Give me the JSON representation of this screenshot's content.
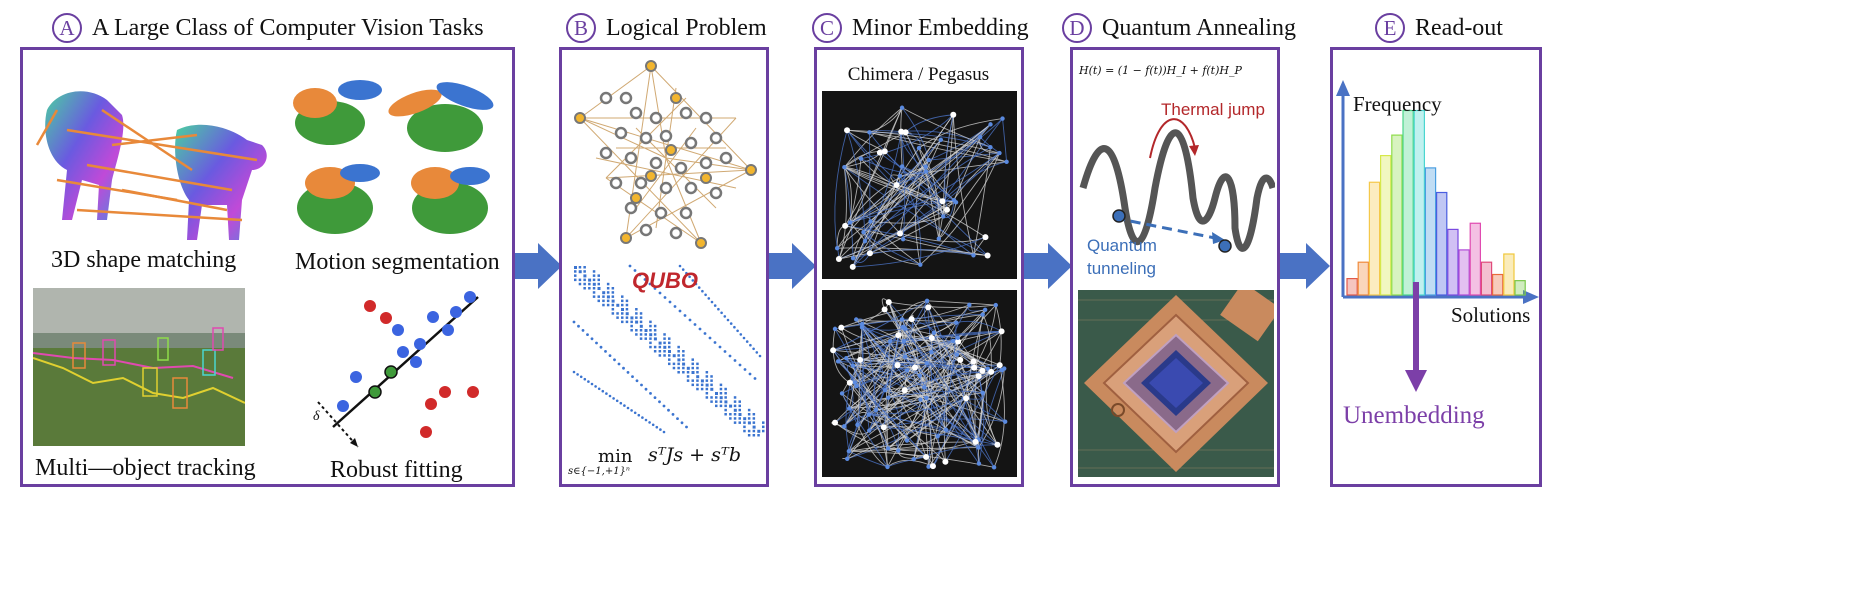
{
  "colors": {
    "accent": "#6a3fa0",
    "arrow": "#4a72c4",
    "orange": "#e8893a",
    "green": "#3f9a3a",
    "blue": "#3b74d0",
    "red": "#d12a2a",
    "qubo": "#c0272d",
    "thermal": "#b3272a",
    "quantum": "#3c6fb8",
    "unembed": "#7c3fa8"
  },
  "sections": [
    {
      "letter": "A",
      "title": "A Large Class of Computer Vision Tasks"
    },
    {
      "letter": "B",
      "title": "Logical Problem"
    },
    {
      "letter": "C",
      "title": "Minor Embedding"
    },
    {
      "letter": "D",
      "title": "Quantum Annealing"
    },
    {
      "letter": "E",
      "title": "Read-out"
    }
  ],
  "panelA": {
    "shape": "3D shape matching",
    "motion": "Motion segmentation",
    "tracking": "Multi—object tracking",
    "robust": "Robust fitting",
    "delta": "δ"
  },
  "panelB": {
    "qubo": "QUBO",
    "min": "min",
    "sub": "s∈{−1,+1}ⁿ",
    "expr": "sᵀJs + sᵀb"
  },
  "panelC": {
    "label": "Chimera / Pegasus"
  },
  "panelD": {
    "hamiltonian": "H(t) = (1 − f(t))H_I + f(t)H_P",
    "thermal": "Thermal jump",
    "quantum1": "Quantum",
    "quantum2": "tunneling"
  },
  "panelE": {
    "ylabel": "Frequency",
    "xlabel": "Solutions",
    "unembed": "Unembedding",
    "bar_values": [
      0.08,
      0.16,
      0.55,
      0.68,
      0.78,
      0.9,
      0.9,
      0.62,
      0.5,
      0.32,
      0.22,
      0.35,
      0.16,
      0.1,
      0.2,
      0.07
    ],
    "bar_colors": [
      "#e25a4a",
      "#f08a3c",
      "#f5c84a",
      "#d6e84a",
      "#8fdc4a",
      "#4ad68a",
      "#4ad6d0",
      "#4a9ee0",
      "#4a5ee0",
      "#7a4ae0",
      "#b04ad8",
      "#e04ab0",
      "#e04a7a",
      "#e86a3c",
      "#f0c83c",
      "#7ac84a"
    ]
  }
}
